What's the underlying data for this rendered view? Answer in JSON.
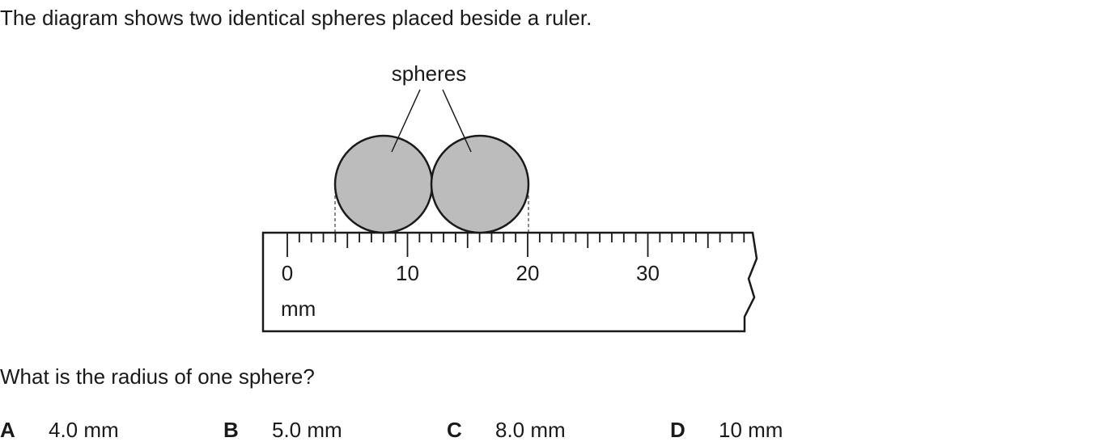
{
  "intro": "The diagram shows two identical spheres placed beside a ruler.",
  "diagram": {
    "label": "spheres",
    "ruler": {
      "labels": [
        "0",
        "10",
        "20",
        "30"
      ],
      "unit": "mm"
    }
  },
  "question": "What is the radius of one sphere?",
  "options": [
    {
      "letter": "A",
      "text": "4.0 mm"
    },
    {
      "letter": "B",
      "text": "5.0 mm"
    },
    {
      "letter": "C",
      "text": "8.0 mm"
    },
    {
      "letter": "D",
      "text": "10 mm"
    }
  ]
}
